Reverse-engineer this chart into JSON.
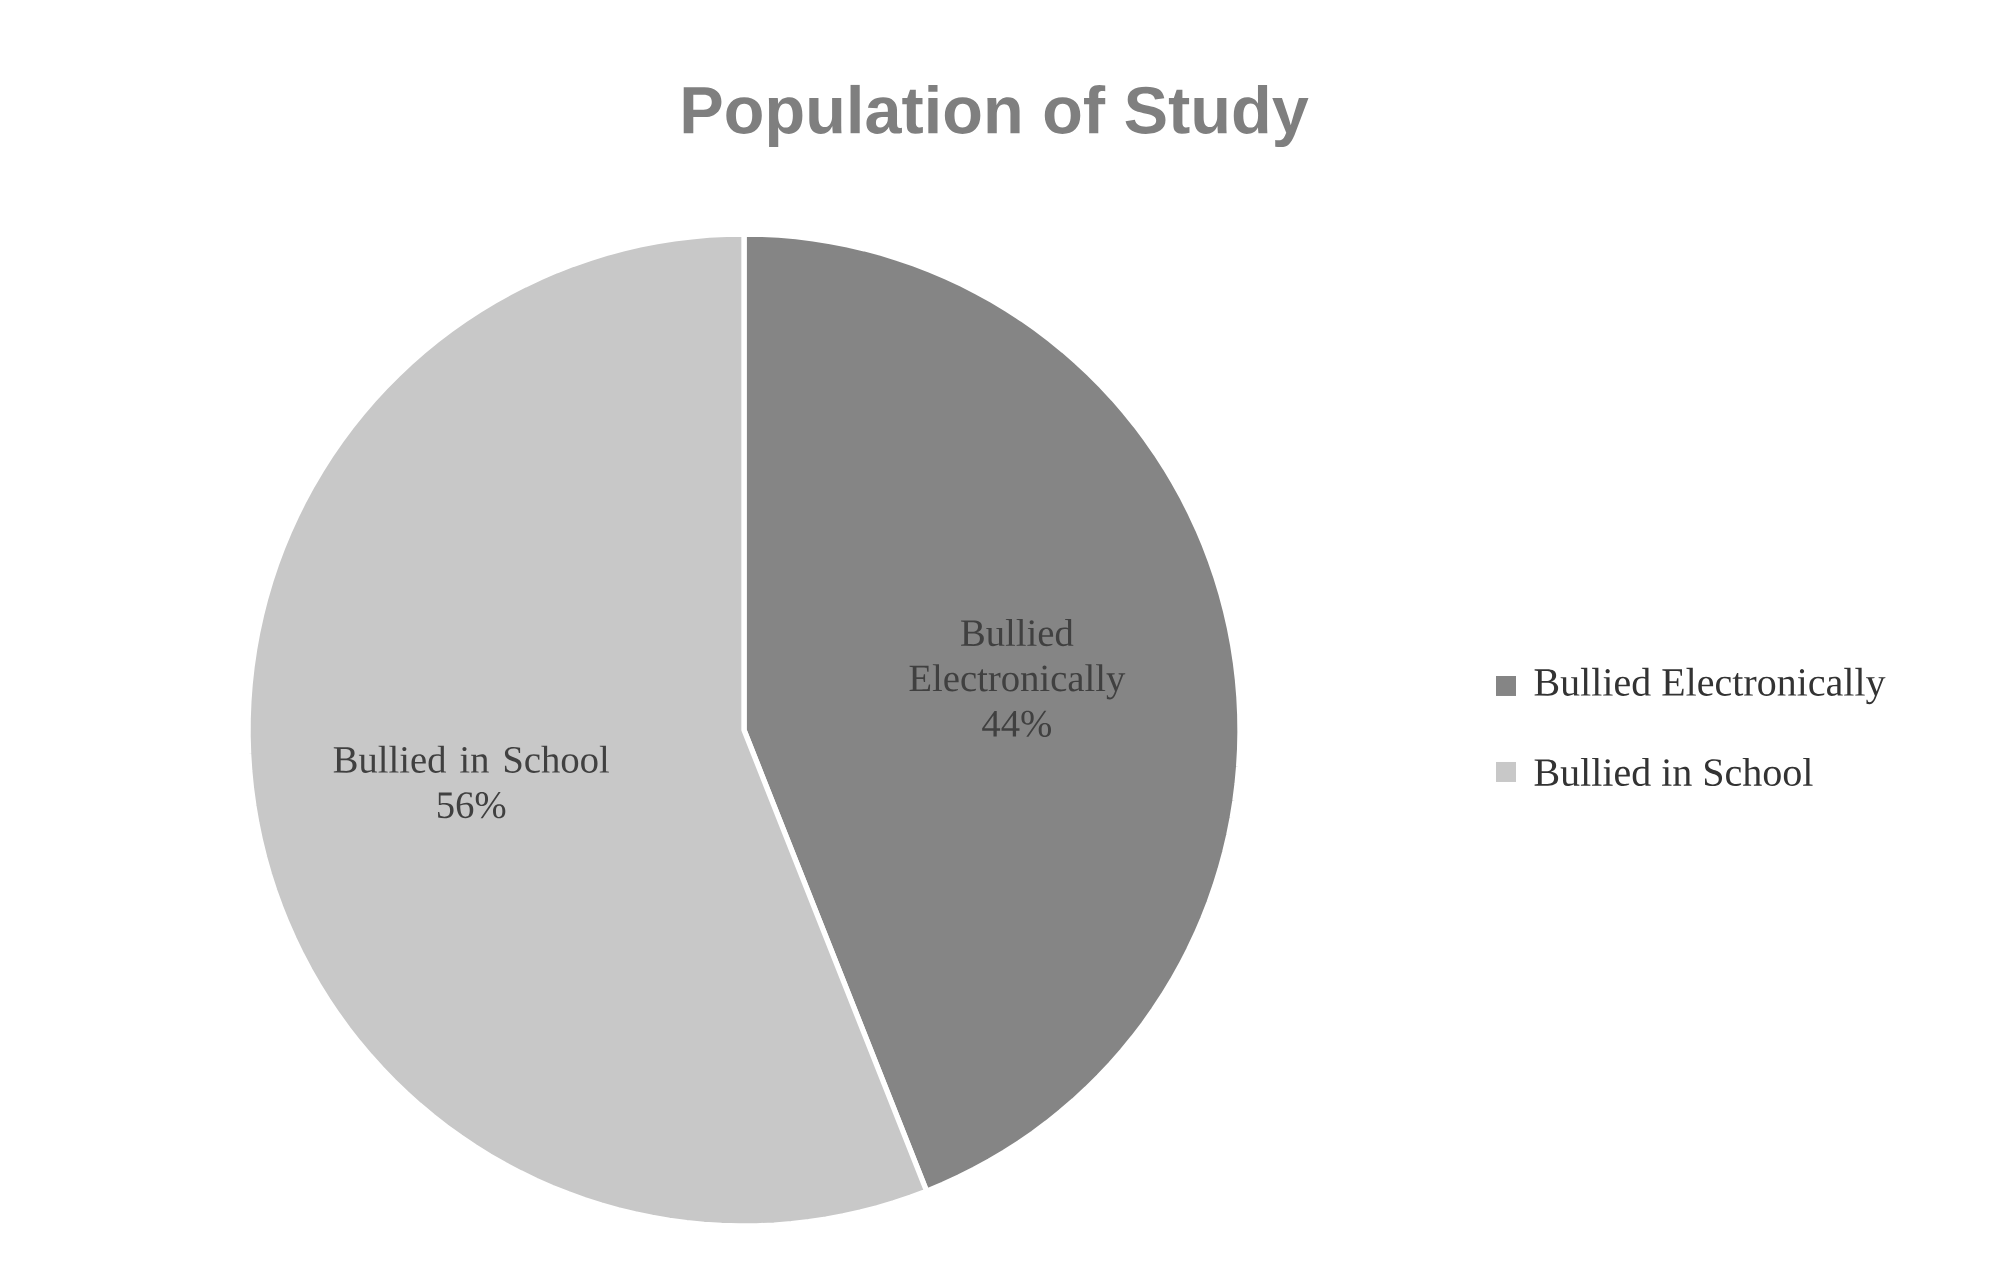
{
  "chart_data": {
    "type": "pie",
    "title": "Population of Study",
    "categories": [
      "Bullied Electronically",
      "Bullied in School"
    ],
    "values": [
      44,
      56
    ],
    "value_labels": [
      "44%",
      "56%"
    ],
    "colors": [
      "#858585",
      "#c8c8c8"
    ],
    "legend": "right"
  }
}
